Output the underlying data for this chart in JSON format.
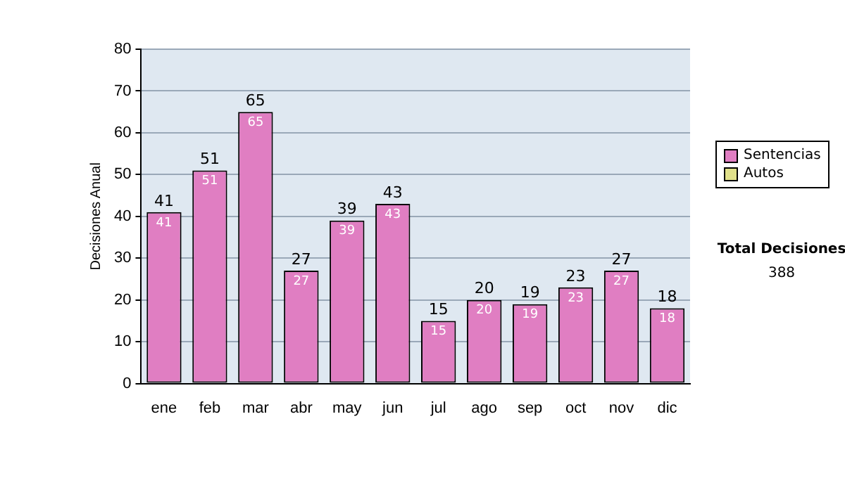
{
  "chart_data": {
    "type": "bar",
    "ylabel": "Decisiones Anual",
    "categories": [
      "ene",
      "feb",
      "mar",
      "abr",
      "may",
      "jun",
      "jul",
      "ago",
      "sep",
      "oct",
      "nov",
      "dic"
    ],
    "series": [
      {
        "name": "Sentencias",
        "color": "#e07ec2",
        "values": [
          41,
          51,
          65,
          27,
          39,
          43,
          15,
          20,
          19,
          23,
          27,
          18
        ],
        "value_labels": [
          "41",
          "51",
          "65",
          "27",
          "39",
          "43",
          "15",
          "20",
          "19",
          "23",
          "27",
          "18"
        ]
      },
      {
        "name": "Autos",
        "color": "#e0e08a",
        "values": [
          0,
          0,
          0,
          0,
          0,
          0,
          0,
          0,
          0,
          0,
          0,
          0
        ]
      }
    ],
    "stacked": true,
    "totals": [
      "41",
      "51",
      "65",
      "27",
      "39",
      "43",
      "15",
      "20",
      "19",
      "23",
      "27",
      "18"
    ],
    "ylim": [
      0,
      80
    ],
    "yticks": [
      0,
      10,
      20,
      30,
      40,
      50,
      60,
      70,
      80
    ],
    "grid": "y",
    "legend": "right",
    "annotations": [
      "Total Decisiones",
      "388"
    ]
  }
}
